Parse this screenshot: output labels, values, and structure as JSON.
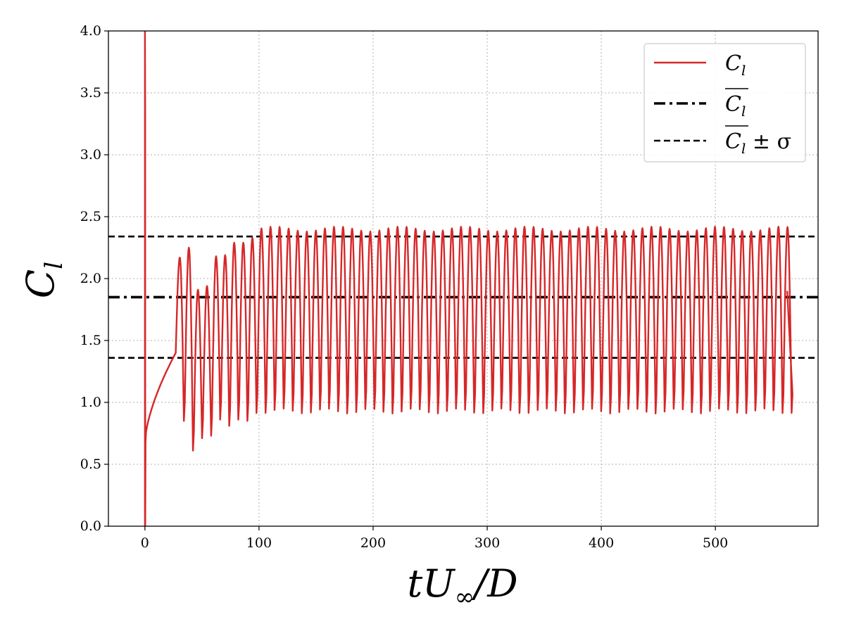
{
  "chart_data": {
    "type": "line",
    "xlabel": "tU∞/D",
    "ylabel": "Cl",
    "xlim": [
      -32,
      590
    ],
    "ylim": [
      0,
      4
    ],
    "xticks": [
      0,
      100,
      200,
      300,
      400,
      500
    ],
    "yticks": [
      0.0,
      0.5,
      1.0,
      1.5,
      2.0,
      2.5,
      3.0,
      3.5,
      4.0
    ],
    "xtick_labels": [
      "0",
      "100",
      "200",
      "300",
      "400",
      "500"
    ],
    "ytick_labels": [
      "0.0",
      "0.5",
      "1.0",
      "1.5",
      "2.0",
      "2.5",
      "3.0",
      "3.5",
      "4.0"
    ],
    "grid": true,
    "legend_position": "top-right",
    "series": [
      {
        "name": "C_l",
        "color": "#d62728",
        "style": "solid",
        "x_range": [
          0,
          563
        ],
        "description_values": {
          "initial_spike_max": 4.0,
          "initial_min": 0.0,
          "early_peaks": [
            2.17,
            2.25,
            1.91,
            1.94,
            2.18,
            2.19,
            2.29,
            2.29,
            2.33
          ],
          "early_troughs": [
            0.85,
            0.61,
            0.71,
            0.73,
            0.86,
            0.81,
            0.86,
            0.85
          ],
          "steady_peak": 2.4,
          "steady_trough": 0.93,
          "period": 7.95
        }
      },
      {
        "name": "mean C_l",
        "color": "#000000",
        "style": "dashdot",
        "y": 1.85
      },
      {
        "name": "mean C_l ± σ",
        "color": "#000000",
        "style": "dashed",
        "y": [
          2.34,
          1.36
        ]
      }
    ],
    "legend": [
      {
        "label_main": "C",
        "label_sub": "l",
        "suffix": "",
        "overline": false,
        "style": "solid",
        "color": "#d62728"
      },
      {
        "label_main": "C",
        "label_sub": "l",
        "suffix": "",
        "overline": true,
        "style": "dashdot",
        "color": "#000000"
      },
      {
        "label_main": "C",
        "label_sub": "l",
        "suffix": " ± σ",
        "overline": true,
        "style": "dashed",
        "color": "#000000"
      }
    ],
    "xlabel_parts": {
      "t": "t",
      "U": "U",
      "sub": "∞",
      "slash": "/D"
    },
    "ylabel_parts": {
      "main": "C",
      "sub": "l"
    }
  }
}
